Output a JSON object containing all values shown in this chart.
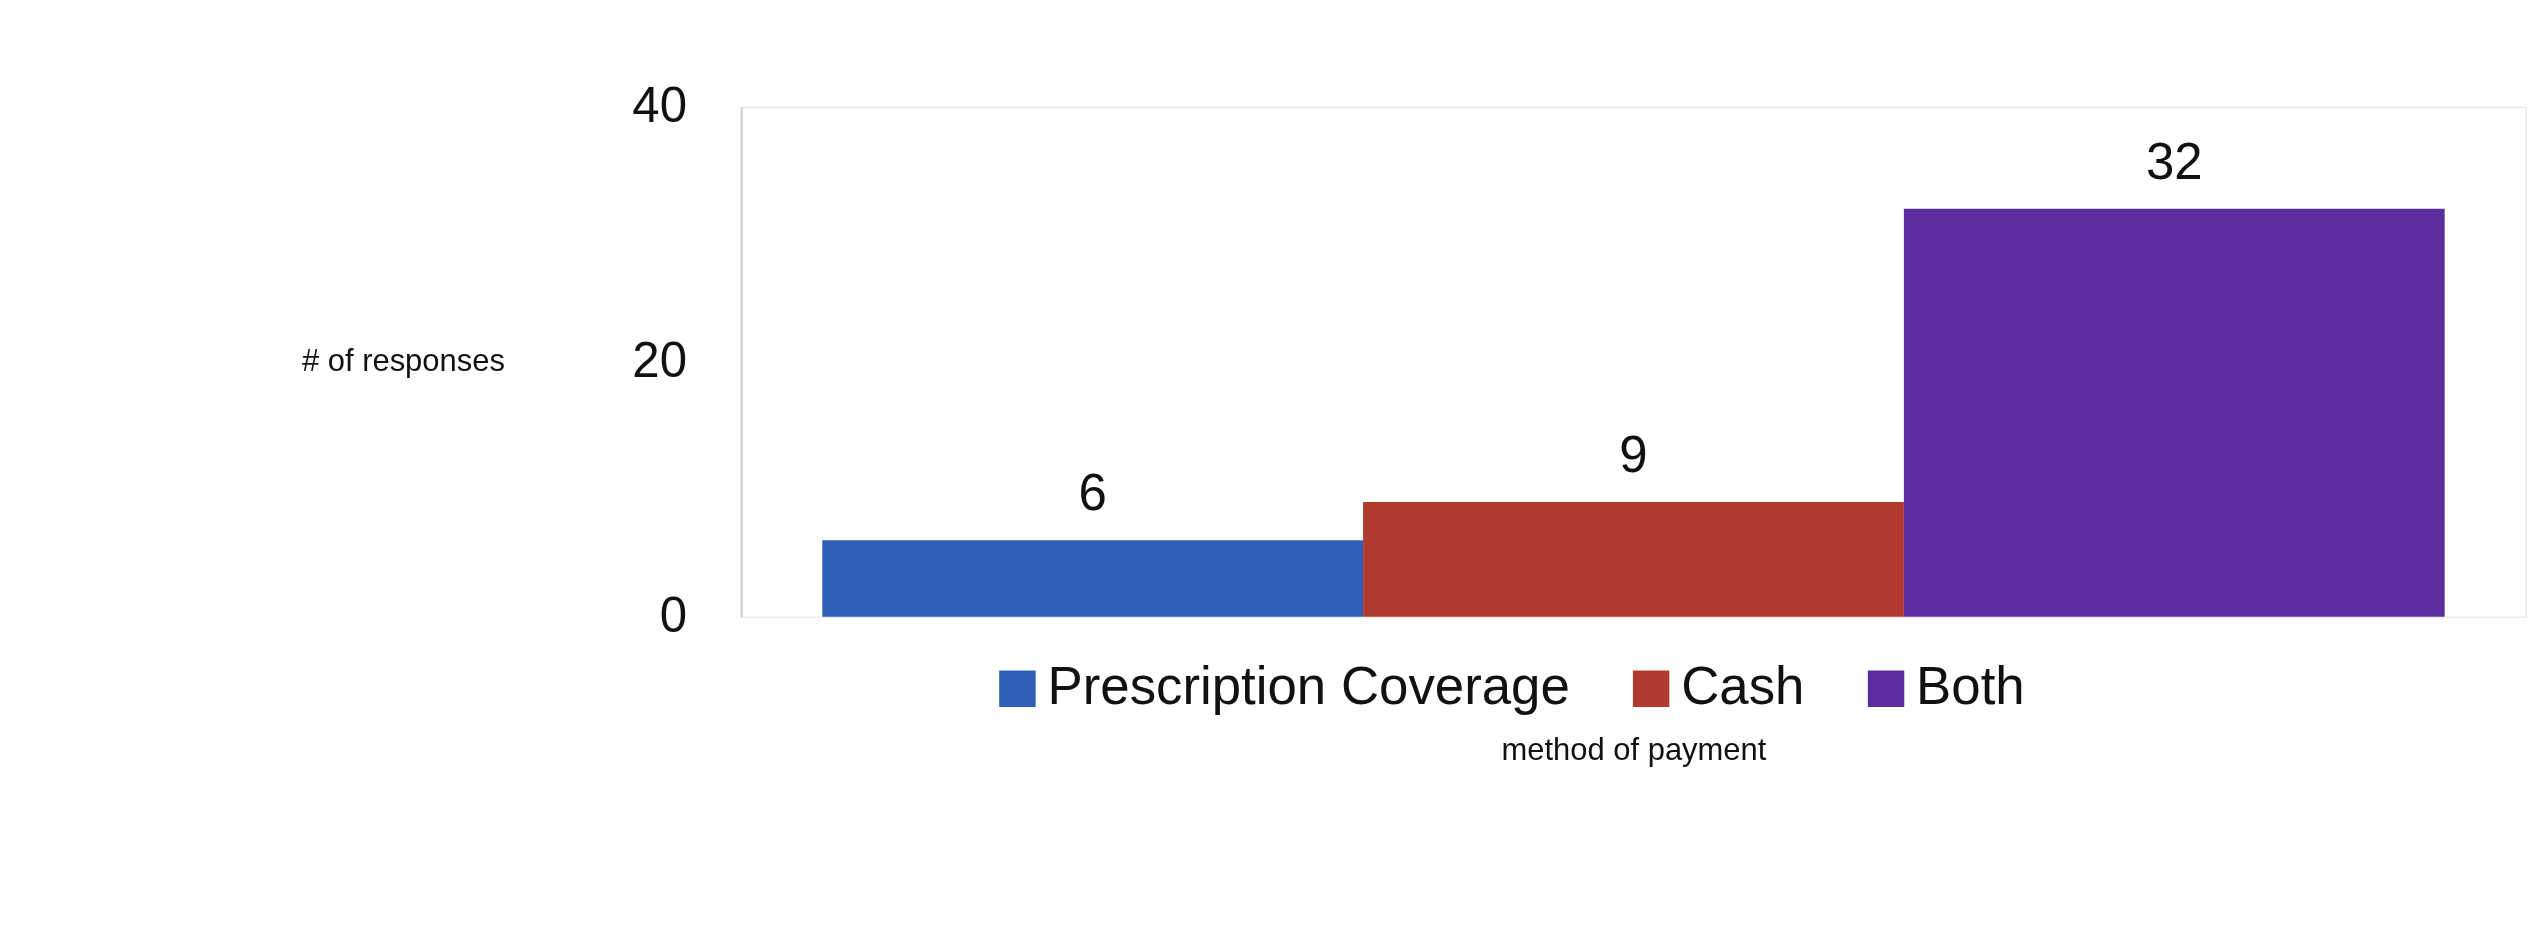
{
  "chart_data": {
    "type": "bar",
    "categories": [
      null
    ],
    "series": [
      {
        "name": "Prescription Coverage",
        "color": "#2e5fb8",
        "values": [
          6
        ]
      },
      {
        "name": "Cash",
        "color": "#b03a2e",
        "values": [
          9
        ]
      },
      {
        "name": "Both",
        "color": "#5b2d9e",
        "values": [
          32
        ]
      }
    ],
    "ylabel": "# of responses",
    "xlabel": "method of payment",
    "ylim": [
      0,
      40
    ],
    "yticks": [
      0,
      20,
      40
    ],
    "grid": false,
    "legend": "bottom",
    "data_labels": true
  }
}
